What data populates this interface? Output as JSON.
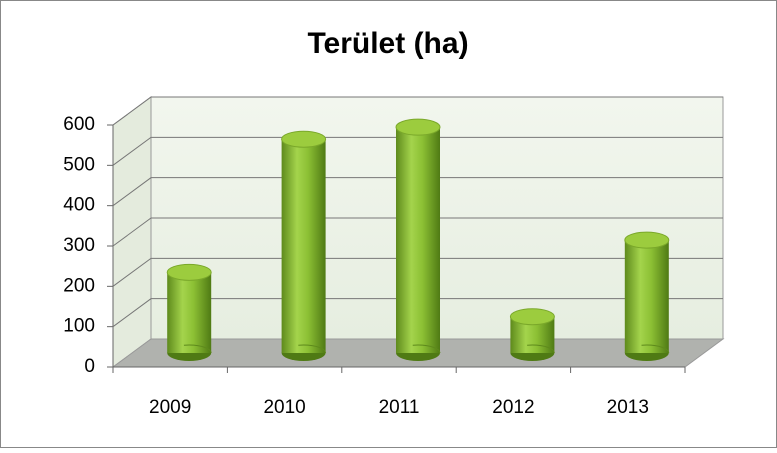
{
  "chart_data": {
    "type": "bar",
    "title": "Terület (ha)",
    "categories": [
      "2009",
      "2010",
      "2011",
      "2012",
      "2013"
    ],
    "values": [
      200,
      530,
      560,
      90,
      280
    ],
    "color": "#8cb832",
    "ylim": [
      0,
      600
    ],
    "yticks": [
      0,
      100,
      200,
      300,
      400,
      500,
      600
    ],
    "grid": true
  }
}
